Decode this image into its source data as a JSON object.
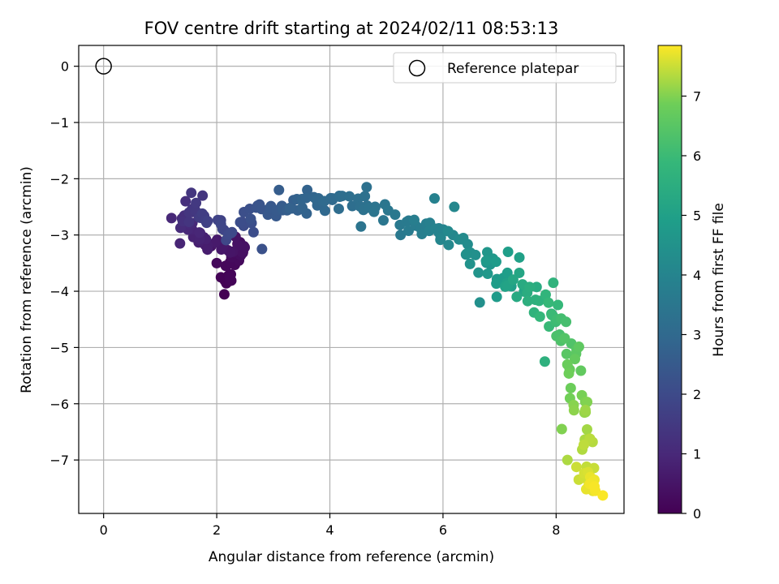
{
  "chart_data": {
    "type": "scatter",
    "title": "FOV centre drift starting at 2024/02/11 08:53:13",
    "xlabel": "Angular distance from reference (arcmin)",
    "ylabel": "Rotation from reference (arcmin)",
    "xlim": [
      -0.44,
      9.2
    ],
    "ylim": [
      -7.95,
      0.37
    ],
    "xticks": [
      0,
      2,
      4,
      6,
      8
    ],
    "yticks": [
      0,
      -1,
      -2,
      -3,
      -4,
      -5,
      -6,
      -7
    ],
    "xtick_labels": [
      "0",
      "2",
      "4",
      "6",
      "8"
    ],
    "ytick_labels": [
      "0",
      "−1",
      "−2",
      "−3",
      "−4",
      "−5",
      "−6",
      "−7"
    ],
    "grid": true,
    "legend": {
      "position": "top-right",
      "entries": [
        "Reference platepar"
      ]
    },
    "colorbar": {
      "label": "Hours from first FF file",
      "colormap": "viridis",
      "range": [
        0,
        7.85
      ],
      "ticks": [
        0,
        1,
        2,
        3,
        4,
        5,
        6,
        7
      ],
      "tick_labels": [
        "0",
        "1",
        "2",
        "3",
        "4",
        "5",
        "6",
        "7"
      ]
    },
    "reference_point": {
      "x": 0,
      "y": 0
    },
    "anchors": [
      [
        2.1,
        -4.0,
        0.0
      ],
      [
        2.3,
        -3.4,
        0.2
      ],
      [
        2.45,
        -3.15,
        0.4
      ],
      [
        1.8,
        -3.2,
        0.7
      ],
      [
        1.45,
        -2.8,
        1.1
      ],
      [
        1.6,
        -2.55,
        1.5
      ],
      [
        2.2,
        -2.95,
        1.9
      ],
      [
        2.8,
        -2.55,
        2.3
      ],
      [
        3.3,
        -2.5,
        2.7
      ],
      [
        3.9,
        -2.45,
        3.0
      ],
      [
        4.6,
        -2.4,
        3.3
      ],
      [
        5.5,
        -2.85,
        3.7
      ],
      [
        6.1,
        -3.0,
        4.1
      ],
      [
        6.6,
        -3.45,
        4.5
      ],
      [
        7.2,
        -3.75,
        5.0
      ],
      [
        7.7,
        -4.1,
        5.6
      ],
      [
        8.05,
        -4.6,
        6.1
      ],
      [
        8.3,
        -5.3,
        6.7
      ],
      [
        8.45,
        -6.3,
        7.2
      ],
      [
        8.55,
        -7.3,
        7.6
      ],
      [
        8.75,
        -7.6,
        7.85
      ]
    ],
    "seeds": [
      [
        1.45,
        -2.4,
        1.2
      ],
      [
        1.55,
        -2.25,
        1.4
      ],
      [
        1.2,
        -2.7,
        1.0
      ],
      [
        1.75,
        -2.3,
        1.4
      ],
      [
        1.35,
        -3.15,
        0.9
      ],
      [
        1.9,
        -3.2,
        0.5
      ],
      [
        2.0,
        -3.5,
        0.2
      ],
      [
        2.25,
        -3.7,
        0.1
      ],
      [
        2.65,
        -2.95,
        2.1
      ],
      [
        2.8,
        -3.25,
        2.2
      ],
      [
        3.1,
        -2.2,
        2.6
      ],
      [
        3.6,
        -2.2,
        2.8
      ],
      [
        4.05,
        -2.35,
        3.0
      ],
      [
        4.65,
        -2.15,
        3.3
      ],
      [
        4.55,
        -2.85,
        3.4
      ],
      [
        4.8,
        -2.5,
        3.3
      ],
      [
        5.25,
        -3.0,
        3.6
      ],
      [
        5.85,
        -2.35,
        3.9
      ],
      [
        6.2,
        -2.5,
        4.1
      ],
      [
        6.65,
        -4.2,
        4.4
      ],
      [
        6.95,
        -4.1,
        4.8
      ],
      [
        7.15,
        -3.3,
        4.9
      ],
      [
        7.35,
        -3.4,
        5.0
      ],
      [
        7.8,
        -5.25,
        5.6
      ],
      [
        7.95,
        -3.85,
        5.7
      ],
      [
        8.1,
        -6.45,
        7.0
      ],
      [
        8.2,
        -7.0,
        7.3
      ],
      [
        8.4,
        -7.35,
        7.5
      ],
      [
        8.65,
        -7.55,
        7.7
      ]
    ]
  }
}
